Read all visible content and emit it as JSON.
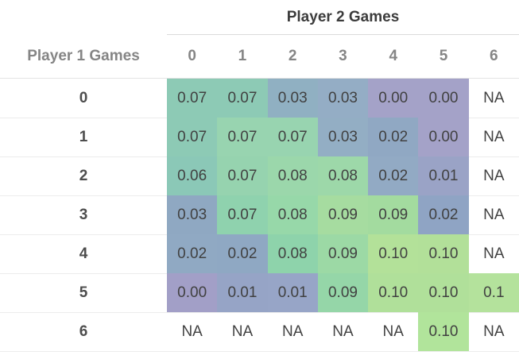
{
  "title": "Player 2 Games",
  "row_header_label": "Player 1 Games",
  "col_headers": [
    "0",
    "1",
    "2",
    "3",
    "4",
    "5",
    "6"
  ],
  "rows": [
    {
      "label": "0",
      "display": [
        "0.07",
        "0.07",
        "0.03",
        "0.03",
        "0.00",
        "0.00",
        "NA"
      ],
      "colors": [
        "#8dcab5",
        "#8dcab5",
        "#90b0c2",
        "#94adc5",
        "#a4a2c8",
        "#a4a2c8",
        null
      ]
    },
    {
      "label": "1",
      "display": [
        "0.07",
        "0.07",
        "0.07",
        "0.03",
        "0.02",
        "0.00",
        "NA"
      ],
      "colors": [
        "#8dcab5",
        "#98d4b0",
        "#98d4b0",
        "#93aec4",
        "#90a8c3",
        "#a4a2c8",
        null
      ]
    },
    {
      "label": "2",
      "display": [
        "0.06",
        "0.07",
        "0.08",
        "0.08",
        "0.02",
        "0.01",
        "NA"
      ],
      "colors": [
        "#8bc8b7",
        "#96d3af",
        "#9bd7ab",
        "#9dd8a9",
        "#92aac4",
        "#9aa3c6",
        null
      ]
    },
    {
      "label": "3",
      "display": [
        "0.03",
        "0.07",
        "0.08",
        "0.09",
        "0.09",
        "0.02",
        "NA"
      ],
      "colors": [
        "#8fa8c2",
        "#8fd2ae",
        "#97d8a9",
        "#a6dca0",
        "#a3db9f",
        "#8fa4c4",
        null
      ]
    },
    {
      "label": "4",
      "display": [
        "0.02",
        "0.02",
        "0.08",
        "0.09",
        "0.10",
        "0.10",
        "NA"
      ],
      "colors": [
        "#90a9c3",
        "#8fa8c3",
        "#8ed3ab",
        "#9cd9a5",
        "#b3e199",
        "#b2e099",
        null
      ]
    },
    {
      "label": "5",
      "display": [
        "0.00",
        "0.01",
        "0.01",
        "0.09",
        "0.10",
        "0.10",
        "0.1"
      ],
      "colors": [
        "#a29fc7",
        "#96a4c6",
        "#97a5c7",
        "#95d6a8",
        "#b0e09a",
        "#b0e09a",
        "#b4e29c"
      ]
    },
    {
      "label": "6",
      "display": [
        "NA",
        "NA",
        "NA",
        "NA",
        "NA",
        "0.10",
        "NA"
      ],
      "colors": [
        null,
        null,
        null,
        null,
        null,
        "#b1e49b",
        null
      ]
    }
  ],
  "palette": {
    "title_text": "#3c3c3c",
    "header_text": "#858585",
    "row_label_text": "#4d4d4d",
    "cell_text": "#414141",
    "title_line": "#dbdbdb",
    "header_line": "#e3e3e3",
    "row_line": "#ececec",
    "na_background": "#ffffff",
    "scale_low": "#a4a2c8",
    "scale_mid": "#8dcab5",
    "scale_high": "#b4e29c"
  },
  "chart_data": {
    "type": "heatmap",
    "title": "Player 2 Games",
    "xlabel": "Player 2 Games",
    "ylabel": "Player 1 Games",
    "x_categories": [
      0,
      1,
      2,
      3,
      4,
      5,
      6
    ],
    "y_categories": [
      0,
      1,
      2,
      3,
      4,
      5,
      6
    ],
    "values": [
      [
        0.07,
        0.07,
        0.03,
        0.03,
        0.0,
        0.0,
        null
      ],
      [
        0.07,
        0.07,
        0.07,
        0.03,
        0.02,
        0.0,
        null
      ],
      [
        0.06,
        0.07,
        0.08,
        0.08,
        0.02,
        0.01,
        null
      ],
      [
        0.03,
        0.07,
        0.08,
        0.09,
        0.09,
        0.02,
        null
      ],
      [
        0.02,
        0.02,
        0.08,
        0.09,
        0.1,
        0.1,
        null
      ],
      [
        0.0,
        0.01,
        0.01,
        0.09,
        0.1,
        0.1,
        0.1
      ],
      [
        null,
        null,
        null,
        null,
        null,
        0.1,
        null
      ]
    ],
    "na_label": "NA",
    "colormap": "viridis-like (purple=low, teal=mid, light green=high)",
    "value_range": [
      0.0,
      0.1
    ],
    "grid": false,
    "legend_position": "none"
  }
}
